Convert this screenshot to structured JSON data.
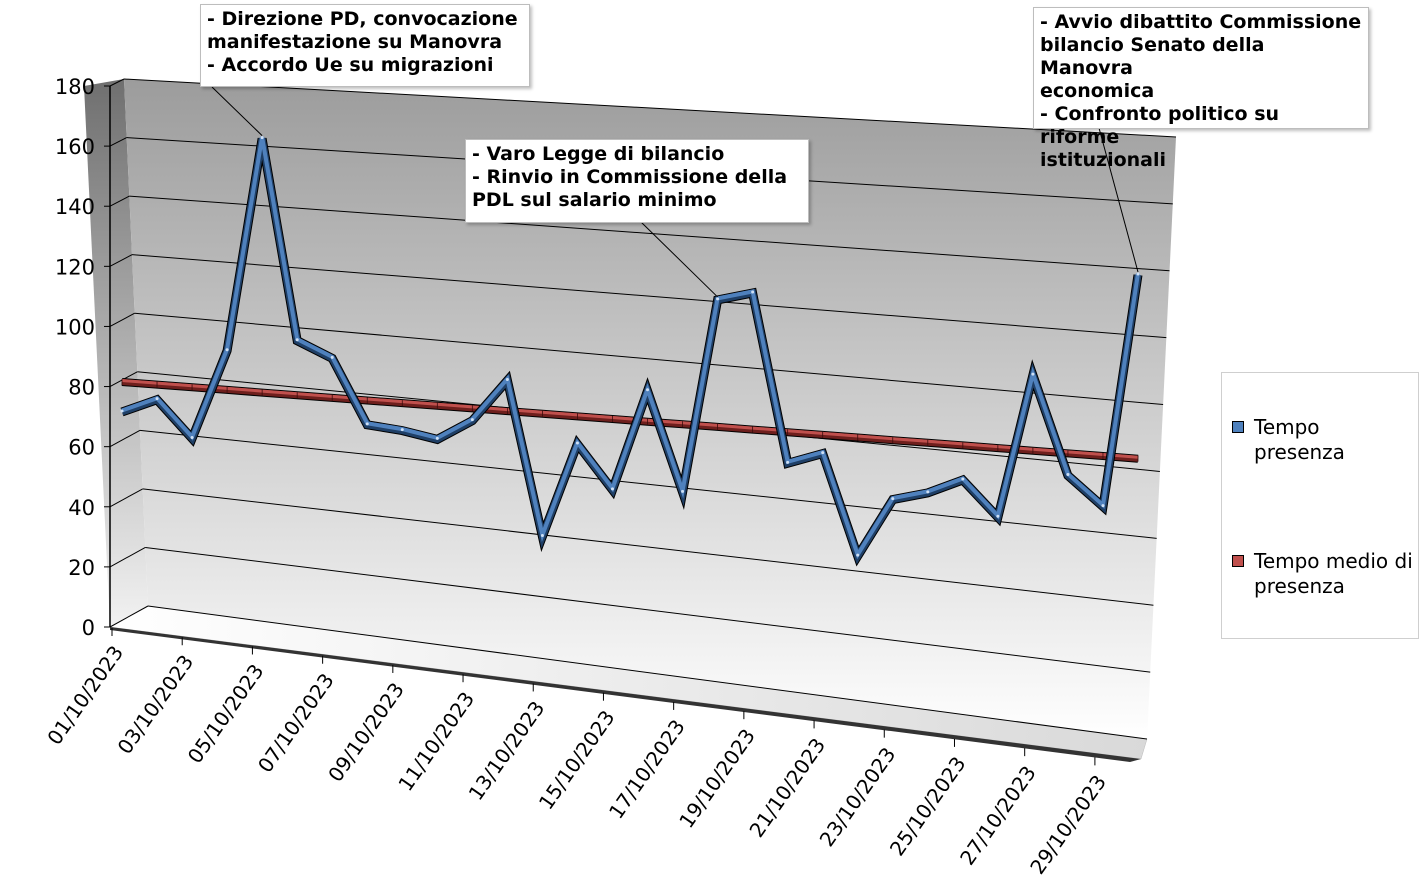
{
  "chart_data": {
    "type": "line",
    "title": "",
    "xlabel": "",
    "ylabel": "",
    "ylim": [
      0,
      180
    ],
    "yticks": [
      0,
      20,
      40,
      60,
      80,
      100,
      120,
      140,
      160,
      180
    ],
    "x": [
      "01/10/2023",
      "02/10/2023",
      "03/10/2023",
      "04/10/2023",
      "05/10/2023",
      "06/10/2023",
      "07/10/2023",
      "08/10/2023",
      "09/10/2023",
      "10/10/2023",
      "11/10/2023",
      "12/10/2023",
      "13/10/2023",
      "14/10/2023",
      "15/10/2023",
      "16/10/2023",
      "17/10/2023",
      "18/10/2023",
      "19/10/2023",
      "20/10/2023",
      "21/10/2023",
      "22/10/2023",
      "23/10/2023",
      "24/10/2023",
      "25/10/2023",
      "26/10/2023",
      "27/10/2023",
      "28/10/2023",
      "29/10/2023",
      "30/10/2023"
    ],
    "xtick_labels": [
      "01/10/2023",
      "03/10/2023",
      "05/10/2023",
      "07/10/2023",
      "09/10/2023",
      "11/10/2023",
      "13/10/2023",
      "15/10/2023",
      "17/10/2023",
      "19/10/2023",
      "21/10/2023",
      "23/10/2023",
      "25/10/2023",
      "27/10/2023",
      "29/10/2023"
    ],
    "series": [
      {
        "name": "Tempo presenza",
        "color": "#4f81bd",
        "values": [
          70,
          75,
          63,
          93,
          164,
          98,
          93,
          72,
          71,
          69,
          76,
          90,
          40,
          71,
          57,
          90,
          58,
          121,
          124,
          70,
          74,
          42,
          61,
          64,
          69,
          58,
          104,
          73,
          64,
          138
        ]
      },
      {
        "name": "Tempo medio di presenza",
        "color": "#c0504d",
        "values": [
          80,
          80,
          80,
          80,
          80,
          80,
          80,
          80,
          80,
          80,
          80,
          80,
          80,
          80,
          80,
          80,
          80,
          80,
          80,
          80,
          80,
          80,
          80,
          80,
          80,
          80,
          80,
          80,
          80,
          80
        ]
      }
    ],
    "annotations": [
      {
        "text": "- Direzione PD, convocazione\nmanifestazione su Manovra\n- Accordo Ue su migrazioni",
        "point_index": 4
      },
      {
        "text": "- Varo Legge di bilancio\n- Rinvio in Commissione della\nPDL sul salario minimo",
        "point_index": 17
      },
      {
        "text": "- Avvio dibattito Commissione\nbilancio Senato della Manovra\neconomica\n- Confronto politico su riforme\nistituzionali",
        "point_index": 29
      }
    ],
    "legend": {
      "position": "right"
    },
    "grid": true,
    "style": "3d-line"
  }
}
